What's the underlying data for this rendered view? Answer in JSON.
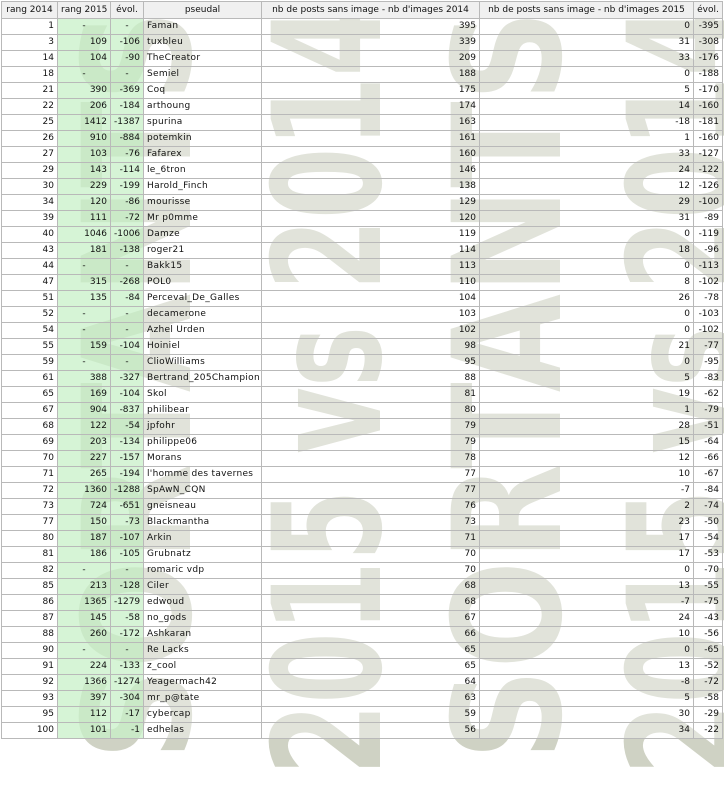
{
  "headers": [
    "rang 2014",
    "rang 2015",
    "évol.",
    "pseudal",
    "nb de posts sans image - nb d'images 2014",
    "nb de posts sans image - nb d'images 2015",
    "évol."
  ],
  "watermark": [
    "SORTANTS",
    "2015 vs 2014"
  ],
  "rows": [
    [
      "1",
      "-",
      "-",
      "Faman",
      "395",
      "0",
      "-395"
    ],
    [
      "3",
      "109",
      "-106",
      "tuxbleu",
      "339",
      "31",
      "-308"
    ],
    [
      "14",
      "104",
      "-90",
      "TheCreator",
      "209",
      "33",
      "-176"
    ],
    [
      "18",
      "-",
      "-",
      "Semiel",
      "188",
      "0",
      "-188"
    ],
    [
      "21",
      "390",
      "-369",
      "Coq",
      "175",
      "5",
      "-170"
    ],
    [
      "22",
      "206",
      "-184",
      "arthoung",
      "174",
      "14",
      "-160"
    ],
    [
      "25",
      "1412",
      "-1387",
      "spurina",
      "163",
      "-18",
      "-181"
    ],
    [
      "26",
      "910",
      "-884",
      "potemkin",
      "161",
      "1",
      "-160"
    ],
    [
      "27",
      "103",
      "-76",
      "Fafarex",
      "160",
      "33",
      "-127"
    ],
    [
      "29",
      "143",
      "-114",
      "le_6tron",
      "146",
      "24",
      "-122"
    ],
    [
      "30",
      "229",
      "-199",
      "Harold_Finch",
      "138",
      "12",
      "-126"
    ],
    [
      "34",
      "120",
      "-86",
      "mourisse",
      "129",
      "29",
      "-100"
    ],
    [
      "39",
      "111",
      "-72",
      "Mr p0mme",
      "120",
      "31",
      "-89"
    ],
    [
      "40",
      "1046",
      "-1006",
      "Damze",
      "119",
      "0",
      "-119"
    ],
    [
      "43",
      "181",
      "-138",
      "roger21",
      "114",
      "18",
      "-96"
    ],
    [
      "44",
      "-",
      "-",
      "Bakk15",
      "113",
      "0",
      "-113"
    ],
    [
      "47",
      "315",
      "-268",
      "POL0",
      "110",
      "8",
      "-102"
    ],
    [
      "51",
      "135",
      "-84",
      "Perceval_De_Galles",
      "104",
      "26",
      "-78"
    ],
    [
      "52",
      "-",
      "-",
      "decamerone",
      "103",
      "0",
      "-103"
    ],
    [
      "54",
      "-",
      "-",
      "Azhel Urden",
      "102",
      "0",
      "-102"
    ],
    [
      "55",
      "159",
      "-104",
      "Hoiniel",
      "98",
      "21",
      "-77"
    ],
    [
      "59",
      "-",
      "-",
      "ClioWilliams",
      "95",
      "0",
      "-95"
    ],
    [
      "61",
      "388",
      "-327",
      "Bertrand_205Champion",
      "88",
      "5",
      "-83"
    ],
    [
      "65",
      "169",
      "-104",
      "Skol",
      "81",
      "19",
      "-62"
    ],
    [
      "67",
      "904",
      "-837",
      "philibear",
      "80",
      "1",
      "-79"
    ],
    [
      "68",
      "122",
      "-54",
      "jpfohr",
      "79",
      "28",
      "-51"
    ],
    [
      "69",
      "203",
      "-134",
      "philippe06",
      "79",
      "15",
      "-64"
    ],
    [
      "70",
      "227",
      "-157",
      "Morans",
      "78",
      "12",
      "-66"
    ],
    [
      "71",
      "265",
      "-194",
      "l'homme des tavernes",
      "77",
      "10",
      "-67"
    ],
    [
      "72",
      "1360",
      "-1288",
      "SpAwN_CQN",
      "77",
      "-7",
      "-84"
    ],
    [
      "73",
      "724",
      "-651",
      "gneisneau",
      "76",
      "2",
      "-74"
    ],
    [
      "77",
      "150",
      "-73",
      "Blackmantha",
      "73",
      "23",
      "-50"
    ],
    [
      "80",
      "187",
      "-107",
      "Arkin",
      "71",
      "17",
      "-54"
    ],
    [
      "81",
      "186",
      "-105",
      "Grubnatz",
      "70",
      "17",
      "-53"
    ],
    [
      "82",
      "-",
      "-",
      "romaric vdp",
      "70",
      "0",
      "-70"
    ],
    [
      "85",
      "213",
      "-128",
      "Ciler",
      "68",
      "13",
      "-55"
    ],
    [
      "86",
      "1365",
      "-1279",
      "edwoud",
      "68",
      "-7",
      "-75"
    ],
    [
      "87",
      "145",
      "-58",
      "no_gods",
      "67",
      "24",
      "-43"
    ],
    [
      "88",
      "260",
      "-172",
      "Ashkaran",
      "66",
      "10",
      "-56"
    ],
    [
      "90",
      "-",
      "-",
      "Re Lacks",
      "65",
      "0",
      "-65"
    ],
    [
      "91",
      "224",
      "-133",
      "z_cool",
      "65",
      "13",
      "-52"
    ],
    [
      "92",
      "1366",
      "-1274",
      "Yeagermach42",
      "64",
      "-8",
      "-72"
    ],
    [
      "93",
      "397",
      "-304",
      "mr_p@tate",
      "63",
      "5",
      "-58"
    ],
    [
      "95",
      "112",
      "-17",
      "cybercap",
      "59",
      "30",
      "-29"
    ],
    [
      "100",
      "101",
      "-1",
      "edhelas",
      "56",
      "34",
      "-22"
    ]
  ]
}
